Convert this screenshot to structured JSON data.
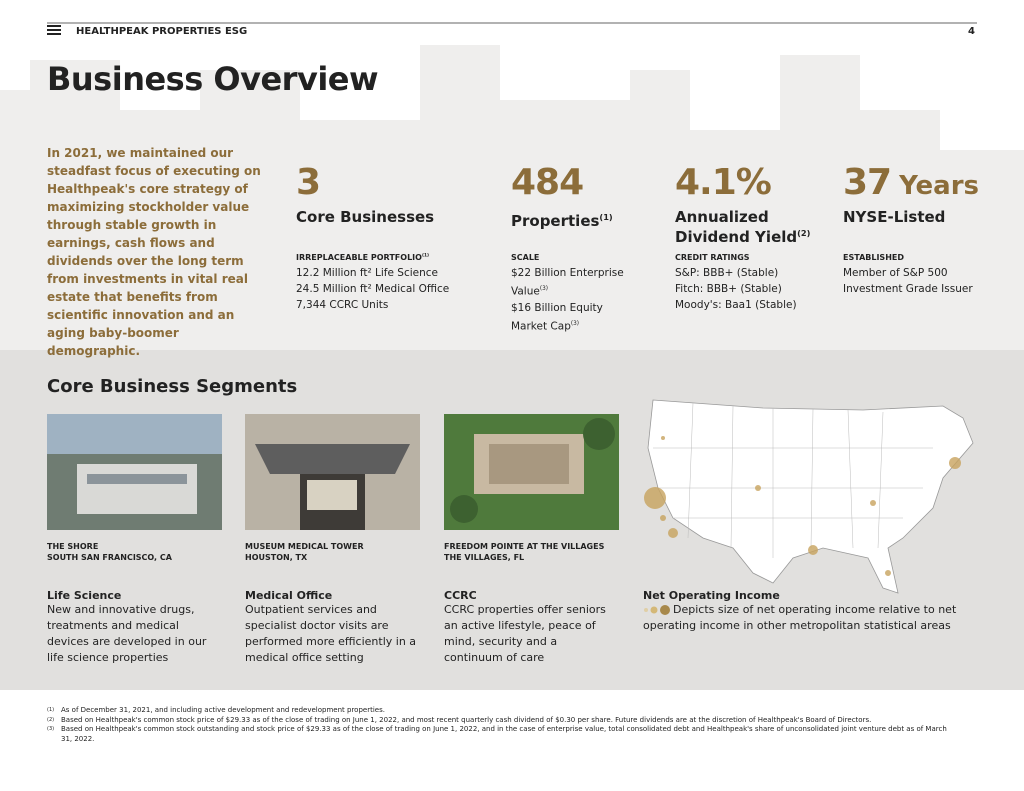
{
  "header": {
    "section": "HEALTHPEAK PROPERTIES ESG",
    "page": "4"
  },
  "title": "Business Overview",
  "intro": "In 2021, we maintained our steadfast focus of executing on Healthpeak's core strategy of maximizing stockholder value through stable growth in earnings, cash flows and dividends over the long term from investments in vital real estate that benefits from scientific innovation and an aging baby-boomer demographic.",
  "stats": [
    {
      "figure": "3",
      "label": "Core Businesses",
      "detail_heading": "IRREPLACEABLE PORTFOLIO",
      "detail_heading_note": "(1)",
      "details": [
        {
          "text": "12.2 Million ft² Life Science"
        },
        {
          "text": "24.5 Million ft² Medical Office"
        },
        {
          "text": "7,344 CCRC Units"
        }
      ]
    },
    {
      "figure": "484",
      "label": "Properties",
      "label_note": "(1)",
      "detail_heading": "SCALE",
      "details": [
        {
          "text": "$22 Billion Enterprise Value",
          "note": "(3)"
        },
        {
          "text": "$16 Billion Equity Market Cap",
          "note": "(3)"
        }
      ]
    },
    {
      "figure": "4.1%",
      "label": "Annualized Dividend Yield",
      "label_note": "(2)",
      "detail_heading": "CREDIT RATINGS",
      "details": [
        {
          "text": "S&P: BBB+ (Stable)"
        },
        {
          "text": "Fitch: BBB+ (Stable)"
        },
        {
          "text": "Moody's: Baa1 (Stable)"
        }
      ]
    },
    {
      "figure": "37",
      "figure_unit": "Years",
      "label": "NYSE-Listed",
      "detail_heading": "ESTABLISHED",
      "details": [
        {
          "text": "Member of S&P 500"
        },
        {
          "text": "Investment Grade Issuer"
        }
      ]
    }
  ],
  "segments_title": "Core Business Segments",
  "segments": [
    {
      "location": [
        "THE SHORE",
        "SOUTH SAN FRANCISCO, CA"
      ],
      "name": "Life Science",
      "description": "New and innovative drugs, treatments and medical devices are developed in our life science properties"
    },
    {
      "location": [
        "MUSEUM MEDICAL TOWER",
        "HOUSTON, TX"
      ],
      "name": "Medical Office",
      "description": "Outpatient services and specialist doctor visits are performed more efficiently in a medical office setting"
    },
    {
      "location": [
        "FREEDOM POINTE AT THE VILLAGES",
        "THE VILLAGES, FL"
      ],
      "name": "CCRC",
      "description": "CCRC properties offer seniors an active lifestyle, peace of mind, security and a continuum of care"
    }
  ],
  "map": {
    "name": "Net Operating Income",
    "description": "Depicts size of net operating income relative to net operating income in other metropolitan statistical areas"
  },
  "footnotes": [
    {
      "mark": "(1)",
      "text": "As of December 31, 2021, and including active development and redevelopment properties."
    },
    {
      "mark": "(2)",
      "text": "Based on Healthpeak's common stock price of $29.33 as of the close of trading on June 1, 2022, and most recent quarterly cash dividend of $0.30 per share. Future dividends are at the discretion of Healthpeak's Board of Directors."
    },
    {
      "mark": "(3)",
      "text": "Based on Healthpeak's common stock outstanding and stock price of $29.33 as of the close of trading on June 1, 2022, and in the case of enterprise value, total consolidated debt and Healthpeak's share of unconsolidated joint venture debt as of March 31, 2022."
    }
  ]
}
